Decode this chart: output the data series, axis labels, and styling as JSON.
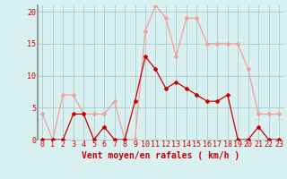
{
  "x": [
    0,
    1,
    2,
    3,
    4,
    5,
    6,
    7,
    8,
    9,
    10,
    11,
    12,
    13,
    14,
    15,
    16,
    17,
    18,
    19,
    20,
    21,
    22,
    23
  ],
  "rafales": [
    4,
    0,
    7,
    7,
    4,
    4,
    4,
    6,
    0,
    0,
    17,
    21,
    19,
    13,
    19,
    19,
    15,
    15,
    15,
    15,
    11,
    4,
    4,
    4
  ],
  "vent_moyen": [
    0,
    0,
    0,
    4,
    4,
    0,
    2,
    0,
    0,
    6,
    13,
    11,
    8,
    9,
    8,
    7,
    6,
    6,
    7,
    0,
    0,
    2,
    0,
    0
  ],
  "color_rafales": "#f0a0a0",
  "color_vent": "#cc0000",
  "bg_color": "#d8f0f0",
  "grid_color": "#aacccc",
  "xlabel": "Vent moyen/en rafales ( km/h )",
  "yticks": [
    0,
    5,
    10,
    15,
    20
  ],
  "ylim": [
    0,
    21
  ],
  "xlim": [
    -0.5,
    23.5
  ],
  "xlabel_color": "#cc0000",
  "tick_color": "#cc0000",
  "xlabel_fontsize": 7,
  "tick_fontsize": 6,
  "left_spine_color": "#888888"
}
